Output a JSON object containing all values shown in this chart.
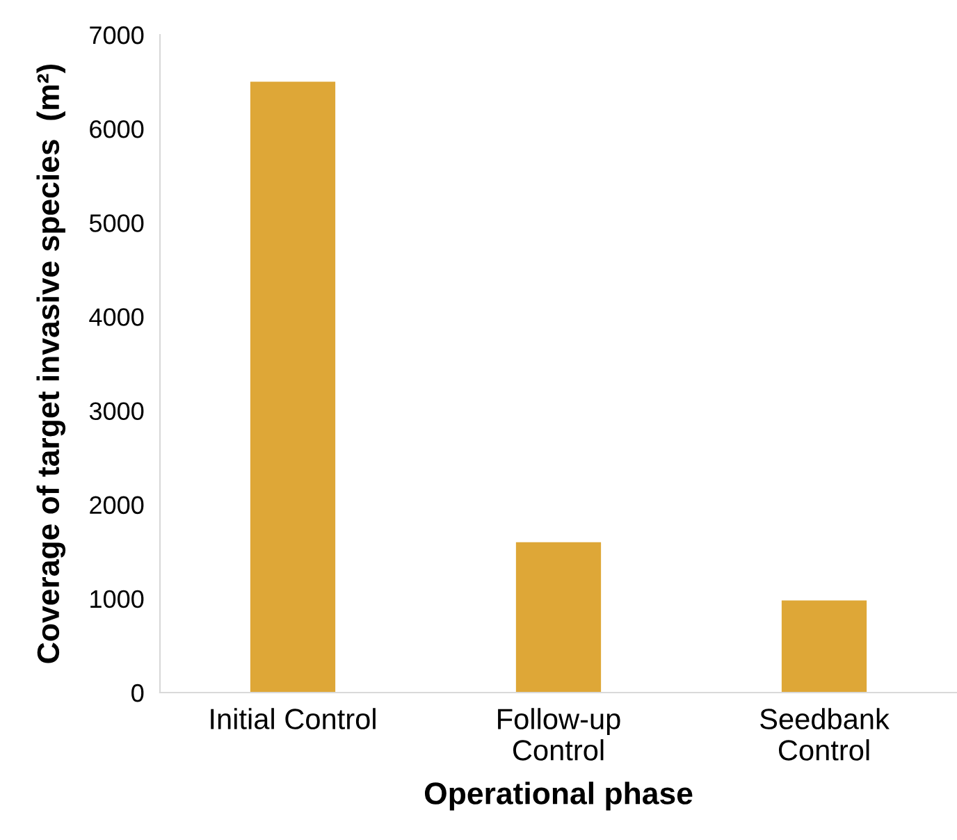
{
  "chart_data": {
    "type": "bar",
    "xlabel": "Operational phase",
    "ylabel": "Coverage of target invasive species  (m²)",
    "categories": [
      "Initial Control",
      "Follow-up\nControl",
      "Seedbank\nControl"
    ],
    "values": [
      6500,
      1600,
      980
    ],
    "color": "#dea737",
    "ylim": [
      0,
      7000
    ],
    "yticks": [
      0,
      1000,
      2000,
      3000,
      4000,
      5000,
      6000,
      7000
    ],
    "grid": false,
    "legend": false
  }
}
